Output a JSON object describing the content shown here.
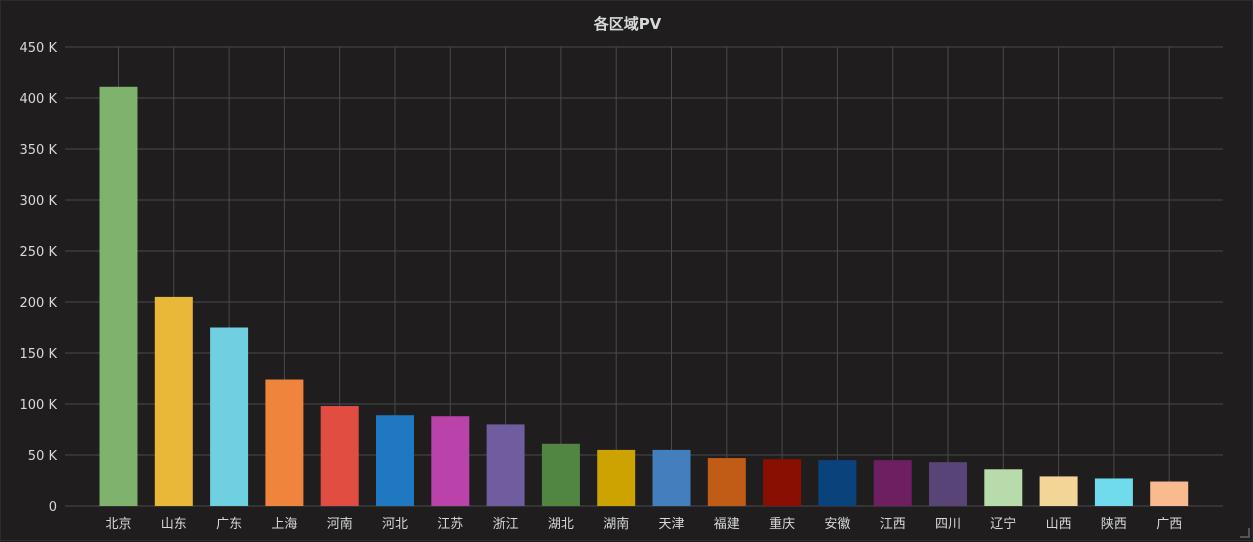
{
  "chart_data": {
    "type": "bar",
    "title": "各区域PV",
    "categories": [
      "北京",
      "山东",
      "广东",
      "上海",
      "河南",
      "河北",
      "江苏",
      "浙江",
      "湖北",
      "湖南",
      "天津",
      "福建",
      "重庆",
      "安徽",
      "江西",
      "四川",
      "辽宁",
      "山西",
      "陕西",
      "广西"
    ],
    "values": [
      411000,
      205000,
      175000,
      124000,
      98000,
      89000,
      88000,
      80000,
      61000,
      55000,
      55000,
      47000,
      46000,
      45000,
      45000,
      43000,
      36000,
      29000,
      27000,
      24000
    ],
    "colors": [
      "#7eb26d",
      "#eab839",
      "#6ed0e0",
      "#ef843c",
      "#e24d42",
      "#1f78c1",
      "#ba43a9",
      "#705da0",
      "#508642",
      "#cca300",
      "#447ebc",
      "#c15c17",
      "#890f02",
      "#0a437c",
      "#6d1f62",
      "#584477",
      "#b7dbab",
      "#f4d598",
      "#70dbed",
      "#f9ba8f"
    ],
    "yticks": [
      "0",
      "50 K",
      "100 K",
      "150 K",
      "200 K",
      "250 K",
      "300 K",
      "350 K",
      "400 K",
      "450 K"
    ],
    "ylim": [
      0,
      450000
    ],
    "grid": true,
    "legend": "none"
  }
}
